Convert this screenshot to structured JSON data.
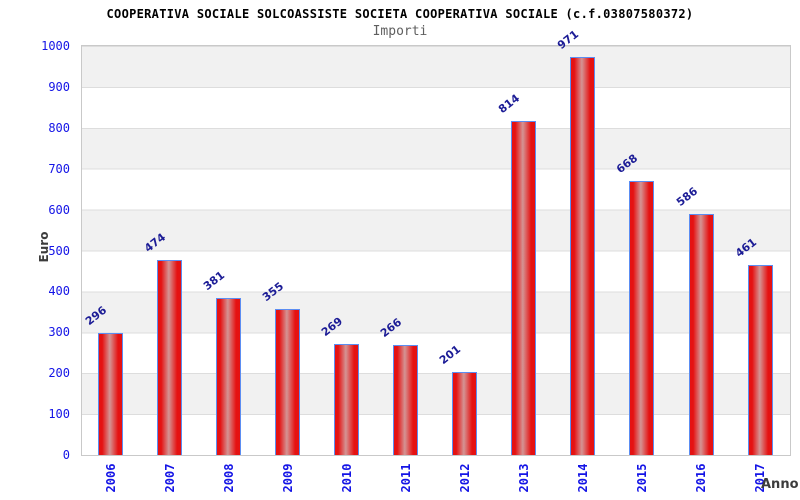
{
  "header": {
    "title": "COOPERATIVA SOCIALE SOLCOASSISTE SOCIETA COOPERATIVA SOCIALE (c.f.03807580372)",
    "subtitle": "Importi"
  },
  "chart_data": {
    "type": "bar",
    "title": "COOPERATIVA SOCIALE SOLCOASSISTE SOCIETA COOPERATIVA SOCIALE (c.f.03807580372)",
    "subtitle": "Importi",
    "xlabel": "Anno",
    "ylabel": "Euro",
    "categories": [
      "2006",
      "2007",
      "2008",
      "2009",
      "2010",
      "2011",
      "2012",
      "2013",
      "2014",
      "2015",
      "2016",
      "2017"
    ],
    "values": [
      296,
      474,
      381,
      355,
      269,
      266,
      201,
      814,
      971,
      668,
      586,
      461
    ],
    "ylim": [
      0,
      1000
    ],
    "ytick_step": 100,
    "y_tick_labels": [
      "1000",
      "900",
      "800",
      "700",
      "600",
      "500",
      "400",
      "300",
      "200",
      "100",
      "0"
    ],
    "grid": true,
    "legend_position": "none",
    "styles": {
      "bar_fill_edge": "#e51212",
      "bar_fill_mid": "#d49494",
      "bar_border": "#5b8df2",
      "band_odd": "#f1f1f1",
      "band_even": "#ffffff",
      "gridline": "#dddddd",
      "plot_border": "#c9c9c9",
      "tick_label_color": "#1414e6",
      "value_label_color": "#1c1c96",
      "axis_title_color": "#3c3c3c",
      "subtitle_color": "#5f5f5f",
      "title_color": "#000000"
    }
  }
}
